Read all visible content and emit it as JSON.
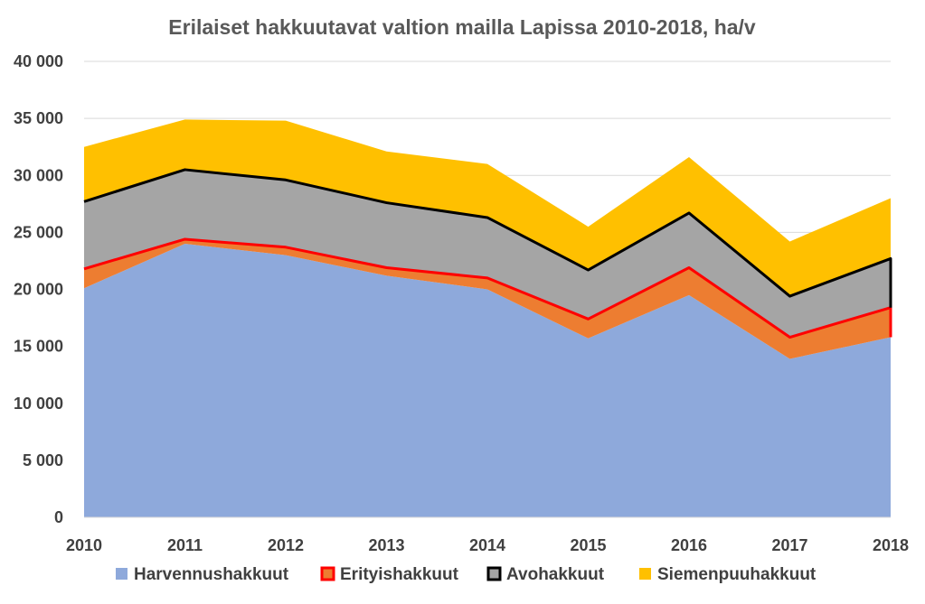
{
  "chart_data": {
    "type": "area",
    "stacked": true,
    "title": "Erilaiset hakkuutavat valtion mailla Lapissa 2010-2018, ha/v",
    "xlabel": "",
    "ylabel": "",
    "categories": [
      "2010",
      "2011",
      "2012",
      "2013",
      "2014",
      "2015",
      "2016",
      "2017",
      "2018"
    ],
    "ylim": [
      0,
      40000
    ],
    "yticks": [
      0,
      5000,
      10000,
      15000,
      20000,
      25000,
      30000,
      35000,
      40000
    ],
    "ytick_labels": [
      "0",
      "5 000",
      "10 000",
      "15 000",
      "20 000",
      "25 000",
      "30 000",
      "35 000",
      "40 000"
    ],
    "grid": true,
    "legend_position": "bottom",
    "series": [
      {
        "name": "Harvennushakkuut",
        "values": [
          20100,
          24000,
          23000,
          21200,
          20000,
          15700,
          19500,
          13900,
          15800
        ],
        "fill": "#8EA9DB",
        "edge": "none"
      },
      {
        "name": "Erityishakkuut",
        "values": [
          1700,
          400,
          700,
          700,
          1000,
          1700,
          2400,
          1900,
          2600
        ],
        "fill": "#ED7D31",
        "edge": "#FF0000"
      },
      {
        "name": "Avohakkuut",
        "values": [
          5900,
          6100,
          5900,
          5700,
          5300,
          4300,
          4800,
          3600,
          4300
        ],
        "fill": "#A5A5A5",
        "edge": "#000000"
      },
      {
        "name": "Siemenpuuhakkuut",
        "values": [
          4800,
          4400,
          5200,
          4500,
          4700,
          3800,
          4900,
          4800,
          5300
        ],
        "fill": "#FFC000",
        "edge": "none"
      }
    ]
  }
}
